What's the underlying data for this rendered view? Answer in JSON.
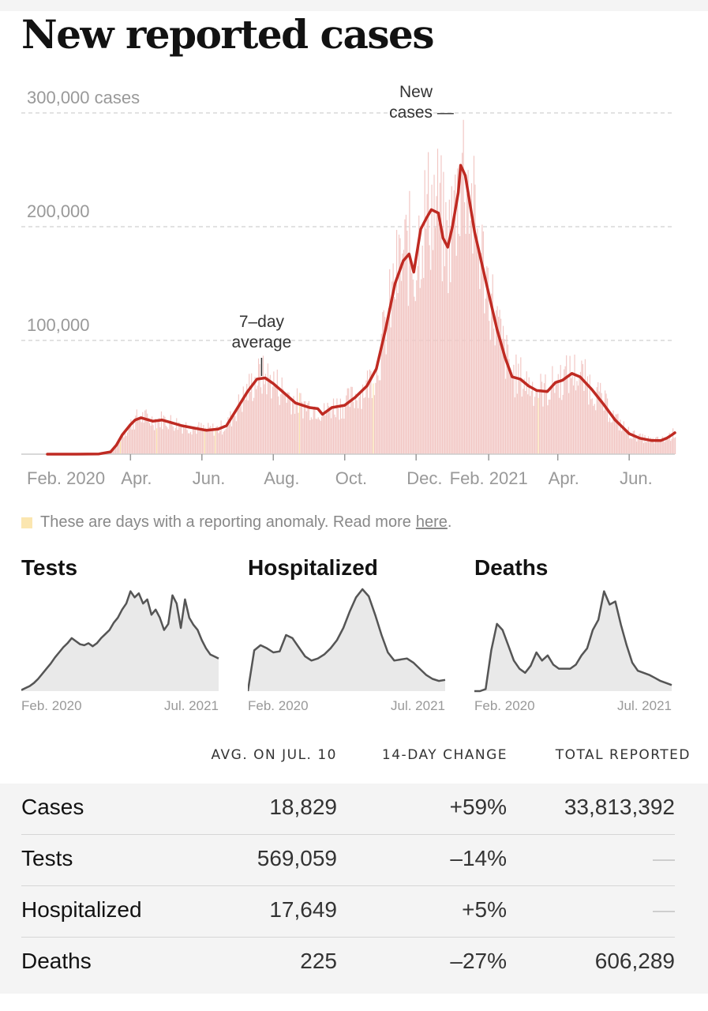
{
  "title": "New reported cases",
  "chart_data": {
    "type": "bar",
    "x_range": [
      "2020-01-21",
      "2021-07-10"
    ],
    "y_range": [
      0,
      300000
    ],
    "y_ticks": [
      {
        "value": 300000,
        "label": "300,000 cases"
      },
      {
        "value": 200000,
        "label": "200,000"
      },
      {
        "value": 100000,
        "label": "100,000"
      }
    ],
    "x_ticks": [
      {
        "date": "2020-02-01",
        "label": "Feb. 2020"
      },
      {
        "date": "2020-04-01",
        "label": "Apr."
      },
      {
        "date": "2020-06-01",
        "label": "Jun."
      },
      {
        "date": "2020-08-01",
        "label": "Aug."
      },
      {
        "date": "2020-10-01",
        "label": "Oct."
      },
      {
        "date": "2020-12-01",
        "label": "Dec."
      },
      {
        "date": "2021-02-01",
        "label": "Feb. 2021"
      },
      {
        "date": "2021-04-01",
        "label": "Apr."
      },
      {
        "date": "2021-06-01",
        "label": "Jun."
      }
    ],
    "grid": true,
    "series": [
      {
        "name": "New cases",
        "kind": "daily bars",
        "color": "#f2c7c4"
      },
      {
        "name": "7-day average",
        "kind": "line",
        "color": "#bf2a22",
        "points": [
          [
            "2020-01-21",
            0
          ],
          [
            "2020-02-15",
            0
          ],
          [
            "2020-03-05",
            200
          ],
          [
            "2020-03-15",
            2000
          ],
          [
            "2020-03-20",
            8000
          ],
          [
            "2020-03-25",
            17000
          ],
          [
            "2020-04-01",
            26000
          ],
          [
            "2020-04-05",
            30000
          ],
          [
            "2020-04-10",
            32000
          ],
          [
            "2020-04-20",
            29000
          ],
          [
            "2020-04-28",
            30000
          ],
          [
            "2020-05-05",
            28000
          ],
          [
            "2020-05-15",
            25000
          ],
          [
            "2020-05-25",
            23000
          ],
          [
            "2020-06-05",
            21000
          ],
          [
            "2020-06-15",
            22000
          ],
          [
            "2020-06-22",
            25000
          ],
          [
            "2020-07-01",
            40000
          ],
          [
            "2020-07-10",
            55000
          ],
          [
            "2020-07-18",
            66000
          ],
          [
            "2020-07-25",
            67000
          ],
          [
            "2020-08-01",
            62000
          ],
          [
            "2020-08-10",
            54000
          ],
          [
            "2020-08-20",
            45000
          ],
          [
            "2020-09-01",
            41000
          ],
          [
            "2020-09-08",
            40000
          ],
          [
            "2020-09-12",
            35000
          ],
          [
            "2020-09-20",
            41000
          ],
          [
            "2020-10-01",
            43000
          ],
          [
            "2020-10-10",
            50000
          ],
          [
            "2020-10-20",
            60000
          ],
          [
            "2020-10-28",
            75000
          ],
          [
            "2020-11-05",
            110000
          ],
          [
            "2020-11-13",
            150000
          ],
          [
            "2020-11-20",
            170000
          ],
          [
            "2020-11-25",
            176000
          ],
          [
            "2020-11-29",
            160000
          ],
          [
            "2020-12-05",
            198000
          ],
          [
            "2020-12-10",
            208000
          ],
          [
            "2020-12-14",
            215000
          ],
          [
            "2020-12-20",
            212000
          ],
          [
            "2020-12-24",
            190000
          ],
          [
            "2020-12-28",
            182000
          ],
          [
            "2021-01-01",
            200000
          ],
          [
            "2021-01-06",
            230000
          ],
          [
            "2021-01-08",
            254000
          ],
          [
            "2021-01-12",
            245000
          ],
          [
            "2021-01-20",
            195000
          ],
          [
            "2021-01-30",
            150000
          ],
          [
            "2021-02-08",
            110000
          ],
          [
            "2021-02-15",
            85000
          ],
          [
            "2021-02-21",
            68000
          ],
          [
            "2021-02-28",
            66000
          ],
          [
            "2021-03-07",
            60000
          ],
          [
            "2021-03-14",
            56000
          ],
          [
            "2021-03-23",
            55000
          ],
          [
            "2021-03-30",
            63000
          ],
          [
            "2021-04-05",
            65000
          ],
          [
            "2021-04-13",
            71000
          ],
          [
            "2021-04-20",
            68000
          ],
          [
            "2021-04-30",
            57000
          ],
          [
            "2021-05-10",
            44000
          ],
          [
            "2021-05-20",
            30000
          ],
          [
            "2021-06-01",
            18000
          ],
          [
            "2021-06-10",
            14000
          ],
          [
            "2021-06-20",
            12000
          ],
          [
            "2021-06-28",
            12000
          ],
          [
            "2021-07-03",
            14000
          ],
          [
            "2021-07-06",
            16000
          ],
          [
            "2021-07-10",
            18829
          ]
        ]
      }
    ],
    "annotations": [
      {
        "label_lines": [
          "New",
          "cases —"
        ],
        "target": "New cases"
      },
      {
        "label_lines": [
          "7–day",
          "average"
        ],
        "target": "7-day average",
        "date": "2020-07-22"
      }
    ],
    "legend_note": {
      "swatch_color": "#fbe6b0",
      "text": "These are days with a reporting anomaly. Read more",
      "link": "here",
      "suffix": "."
    }
  },
  "small_charts": [
    {
      "title": "Tests",
      "x_labels": [
        "Feb. 2020",
        "Jul. 2021"
      ],
      "values": [
        0.01,
        0.03,
        0.05,
        0.08,
        0.12,
        0.17,
        0.22,
        0.27,
        0.33,
        0.38,
        0.43,
        0.47,
        0.52,
        0.49,
        0.46,
        0.45,
        0.47,
        0.44,
        0.47,
        0.52,
        0.56,
        0.6,
        0.67,
        0.72,
        0.8,
        0.86,
        0.98,
        0.92,
        0.96,
        0.86,
        0.9,
        0.75,
        0.8,
        0.72,
        0.6,
        0.66,
        0.94,
        0.86,
        0.62,
        0.9,
        0.72,
        0.65,
        0.6,
        0.5,
        0.42,
        0.36,
        0.34,
        0.32
      ]
    },
    {
      "title": "Hospitalized",
      "x_labels": [
        "Feb. 2020",
        "Jul. 2021"
      ],
      "values": [
        0.0,
        0.4,
        0.45,
        0.42,
        0.38,
        0.39,
        0.55,
        0.52,
        0.43,
        0.34,
        0.3,
        0.32,
        0.36,
        0.42,
        0.5,
        0.62,
        0.78,
        0.92,
        1.0,
        0.93,
        0.75,
        0.55,
        0.38,
        0.3,
        0.31,
        0.32,
        0.28,
        0.22,
        0.16,
        0.12,
        0.1,
        0.11
      ]
    },
    {
      "title": "Deaths",
      "x_labels": [
        "Feb. 2020",
        "Jul. 2021"
      ],
      "values": [
        0.0,
        0.0,
        0.02,
        0.4,
        0.66,
        0.6,
        0.45,
        0.3,
        0.22,
        0.18,
        0.25,
        0.38,
        0.3,
        0.35,
        0.26,
        0.22,
        0.22,
        0.22,
        0.26,
        0.35,
        0.42,
        0.6,
        0.7,
        0.98,
        0.85,
        0.88,
        0.65,
        0.45,
        0.28,
        0.2,
        0.18,
        0.16,
        0.13,
        0.1,
        0.08,
        0.06
      ]
    }
  ],
  "stats": {
    "headers": [
      "AVG. ON JUL. 10",
      "14-DAY CHANGE",
      "TOTAL REPORTED"
    ],
    "rows": [
      {
        "label": "Cases",
        "avg": "18,829",
        "change": "+59%",
        "total": "33,813,392"
      },
      {
        "label": "Tests",
        "avg": "569,059",
        "change": "–14%",
        "total": "—"
      },
      {
        "label": "Hospitalized",
        "avg": "17,649",
        "change": "+5%",
        "total": "—"
      },
      {
        "label": "Deaths",
        "avg": "225",
        "change": "–27%",
        "total": "606,289"
      }
    ]
  },
  "colors": {
    "line": "#bf2a22",
    "bars": "#f2c7c4",
    "anomaly": "#fbe6b0",
    "small_fill": "#e9e9e9",
    "small_line": "#555555",
    "grid": "#d9d9d9",
    "axis_text": "#999999"
  }
}
